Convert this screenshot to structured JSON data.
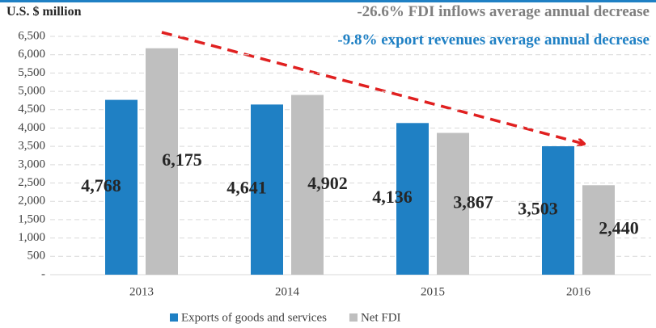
{
  "chart_data": {
    "type": "bar",
    "y_label": "U.S. $ million",
    "annotations": [
      "-26.6% FDI inflows average annual decrease",
      "-9.8% export revenues average annual decrease"
    ],
    "categories": [
      "2013",
      "2014",
      "2015",
      "2016"
    ],
    "series": [
      {
        "name": "Exports of goods and services",
        "color": "#1f80c4",
        "values": [
          4768,
          4641,
          4136,
          3503
        ],
        "value_labels": [
          "4,768",
          "4,641",
          "4,136",
          "3,503"
        ]
      },
      {
        "name": "Net FDI",
        "color": "#bfbfbf",
        "values": [
          6175,
          4902,
          3867,
          2440
        ],
        "value_labels": [
          "6,175",
          "4,902",
          "3,867",
          "2,440"
        ]
      }
    ],
    "ylim": [
      0,
      6500
    ],
    "yticks": [
      {
        "value": 0,
        "label": "-"
      },
      {
        "value": 500,
        "label": "500"
      },
      {
        "value": 1000,
        "label": "1,000"
      },
      {
        "value": 1500,
        "label": "1,500"
      },
      {
        "value": 2000,
        "label": "2,000"
      },
      {
        "value": 2500,
        "label": "2,500"
      },
      {
        "value": 3000,
        "label": "3,000"
      },
      {
        "value": 3500,
        "label": "3,500"
      },
      {
        "value": 4000,
        "label": "4,000"
      },
      {
        "value": 4500,
        "label": "4,500"
      },
      {
        "value": 5000,
        "label": "5,000"
      },
      {
        "value": 5500,
        "label": "5,500"
      },
      {
        "value": 6000,
        "label": "6,000"
      },
      {
        "value": 6500,
        "label": "6,500"
      }
    ],
    "grid": true,
    "legend": "bottom"
  }
}
